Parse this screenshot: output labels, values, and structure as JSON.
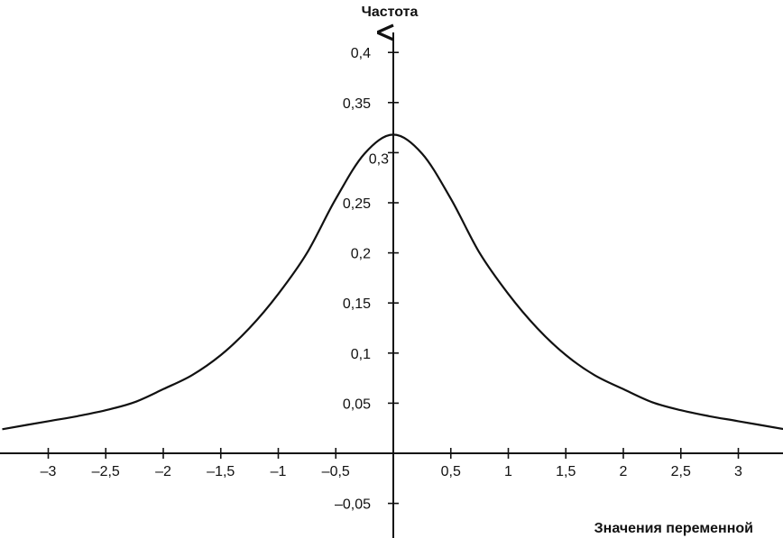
{
  "chart_data": {
    "type": "line",
    "title": "",
    "xlabel": "Значения переменной",
    "ylabel": "Частота",
    "xlim": [
      -3.4,
      3.4
    ],
    "ylim": [
      -0.08,
      0.43
    ],
    "grid": false,
    "x_ticks": [
      -3,
      -2.5,
      -2,
      -1.5,
      -1,
      -0.5,
      0.5,
      1,
      1.5,
      2,
      2.5,
      3
    ],
    "x_tick_labels": [
      "–3",
      "–2,5",
      "–2",
      "–1,5",
      "–1",
      "–0,5",
      "0,5",
      "1",
      "1,5",
      "2",
      "2,5",
      "3"
    ],
    "y_ticks": [
      0.4,
      0.35,
      0.3,
      0.25,
      0.2,
      0.15,
      0.1,
      0.05,
      -0.05
    ],
    "y_tick_labels": [
      "0,4",
      "0,35",
      "0,3",
      "0,25",
      "0,2",
      "0,15",
      "0,1",
      "0,05",
      "–0,05"
    ],
    "series": [
      {
        "x": [
          -3.4,
          -3.0,
          -2.75,
          -2.5,
          -2.25,
          -2.0,
          -1.75,
          -1.5,
          -1.25,
          -1.0,
          -0.75,
          -0.5,
          -0.25,
          0.0,
          0.25,
          0.5,
          0.75,
          1.0,
          1.25,
          1.5,
          1.75,
          2.0,
          2.25,
          2.5,
          2.75,
          3.0,
          3.4
        ],
        "y": [
          0.024,
          0.032,
          0.037,
          0.043,
          0.051,
          0.064,
          0.078,
          0.098,
          0.125,
          0.159,
          0.2,
          0.254,
          0.299,
          0.318,
          0.299,
          0.254,
          0.2,
          0.159,
          0.125,
          0.098,
          0.078,
          0.064,
          0.051,
          0.043,
          0.037,
          0.032,
          0.024
        ]
      }
    ]
  }
}
